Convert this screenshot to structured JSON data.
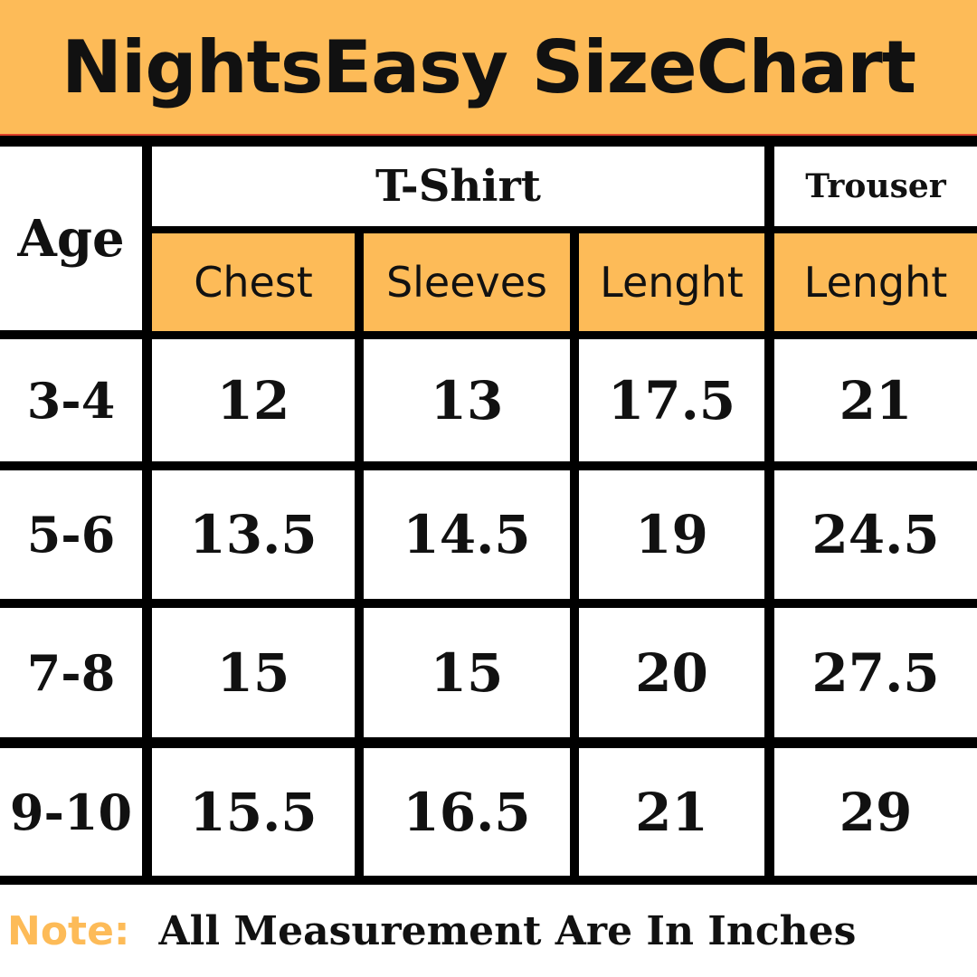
{
  "title": "NightsEasy SizeChart",
  "header": {
    "age": "Age",
    "tshirt": "T-Shirt",
    "trouser": "Trouser",
    "columns": [
      "Chest",
      "Sleeves",
      "Lenght",
      "Lenght"
    ]
  },
  "rows": [
    {
      "age": "3-4",
      "values": [
        "12",
        "13",
        "17.5",
        "21"
      ]
    },
    {
      "age": "5-6",
      "values": [
        "13.5",
        "14.5",
        "19",
        "24.5"
      ]
    },
    {
      "age": "7-8",
      "values": [
        "15",
        "15",
        "20",
        "27.5"
      ]
    },
    {
      "age": "9-10",
      "values": [
        "15.5",
        "16.5",
        "21",
        "29"
      ]
    }
  ],
  "note": {
    "label": "Note:",
    "text": "All Measurement Are In Inches"
  },
  "colors": {
    "accent": "#FDBB58",
    "lines": "#000000"
  }
}
